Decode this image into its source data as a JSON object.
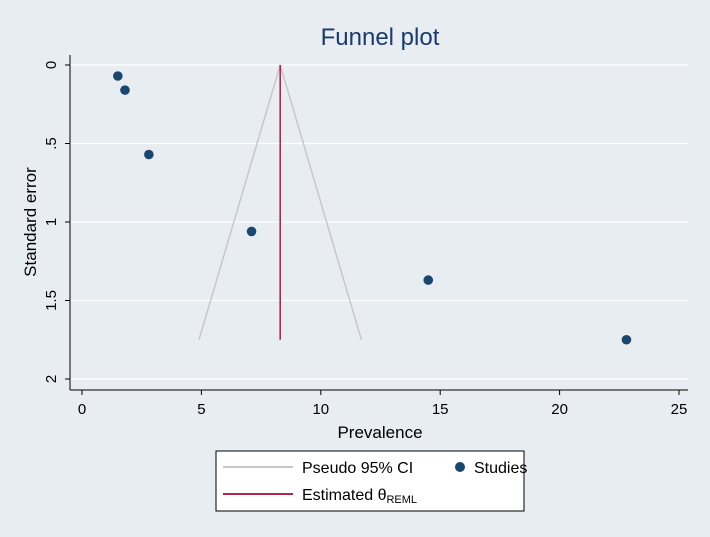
{
  "chart_data": {
    "type": "scatter",
    "title": "Funnel plot",
    "xlabel": "Prevalence",
    "ylabel": "Standard error",
    "xlim": [
      0,
      25
    ],
    "ylim": [
      0,
      2
    ],
    "y_reversed": true,
    "grid": "horizontal",
    "xticks": [
      "0",
      "5",
      "10",
      "15",
      "20",
      "25"
    ],
    "yticks": [
      "0",
      ".5",
      "1",
      "1.5",
      "2"
    ],
    "studies": {
      "name": "Studies",
      "color": "#1a476f",
      "points": [
        {
          "x": 1.5,
          "y": 0.07
        },
        {
          "x": 1.8,
          "y": 0.16
        },
        {
          "x": 2.8,
          "y": 0.57
        },
        {
          "x": 7.1,
          "y": 1.06
        },
        {
          "x": 14.5,
          "y": 1.37
        },
        {
          "x": 22.8,
          "y": 1.75
        }
      ]
    },
    "pseudo_ci": {
      "name": "Pseudo 95% CI",
      "color": "#c8c8c8",
      "apex": {
        "x": 8.3,
        "y": 0
      },
      "base_left": {
        "x": 4.9,
        "y": 1.75
      },
      "base_right": {
        "x": 11.7,
        "y": 1.75
      }
    },
    "estimate": {
      "name_main": "Estimated θ",
      "name_sub": "REML",
      "color": "#b5244b",
      "x": 8.3,
      "y_range": [
        0,
        1.75
      ]
    },
    "legend_position": "bottom",
    "colors": {
      "background": "#e8edf1",
      "plot_area": "#e8edf1",
      "gridline": "#ffffff",
      "title": "#1a3a70"
    }
  }
}
